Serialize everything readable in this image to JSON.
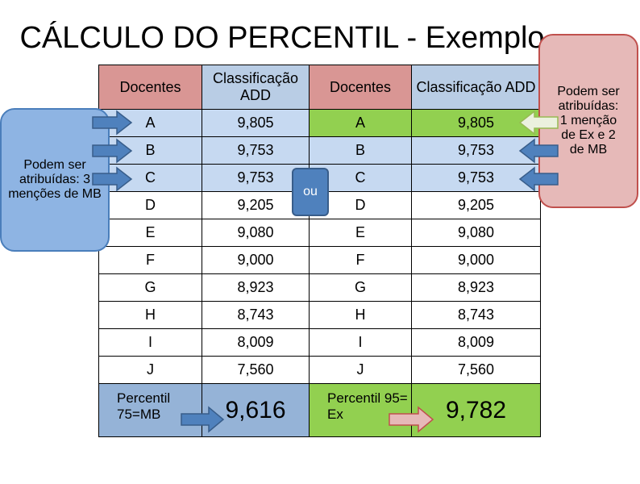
{
  "title": "CÁLCULO DO PERCENTIL - Exemplo",
  "table": {
    "header": [
      "Docentes",
      "Classificação ADD",
      "Docentes",
      "Classificação ADD"
    ],
    "rows": [
      [
        "A",
        "9,805",
        "A",
        "9,805"
      ],
      [
        "B",
        "9,753",
        "B",
        "9,753"
      ],
      [
        "C",
        "9,753",
        "C",
        "9,753"
      ],
      [
        "D",
        "9,205",
        "D",
        "9,205"
      ],
      [
        "E",
        "9,080",
        "E",
        "9,080"
      ],
      [
        "F",
        "9,000",
        "F",
        "9,000"
      ],
      [
        "G",
        "8,923",
        "G",
        "8,923"
      ],
      [
        "H",
        "8,743",
        "H",
        "8,743"
      ],
      [
        "I",
        "8,009",
        "I",
        "8,009"
      ],
      [
        "J",
        "7,560",
        "J",
        "7,560"
      ]
    ],
    "footer": [
      "Percentil 75=MB",
      "9,616",
      "Percentil 95= Ex",
      "9,782"
    ]
  },
  "callouts": {
    "left": "Podem ser atribuídas: 3 menções de MB",
    "right": "Podem ser atribuídas: 1 menção de Ex e 2 de MB",
    "middle": "ou"
  }
}
